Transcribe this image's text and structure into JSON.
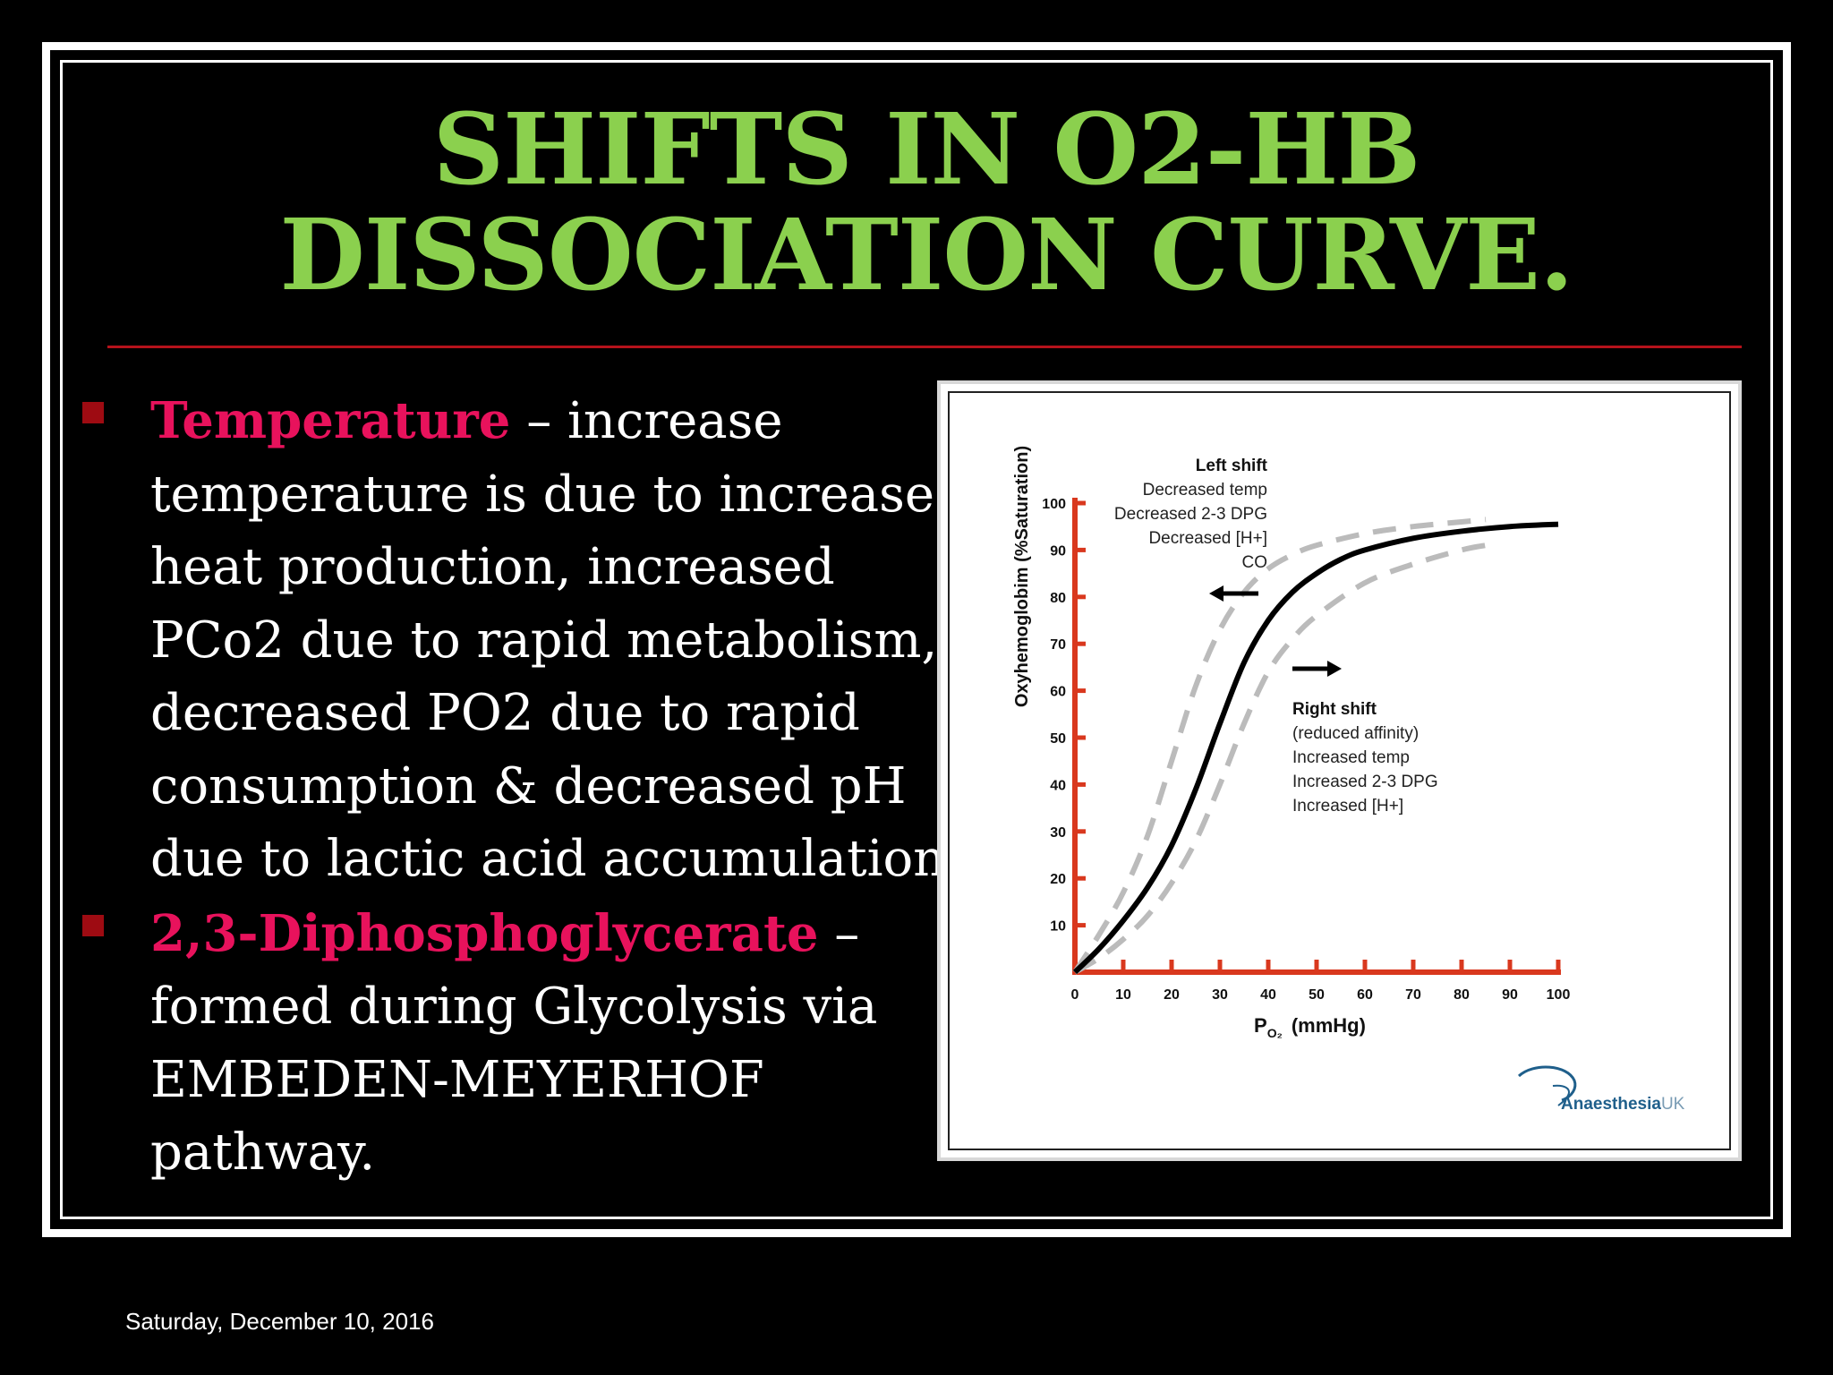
{
  "slide": {
    "title_line1": "SHIFTS IN O2-HB",
    "title_line2": "DISSOCIATION CURVE.",
    "date": "Saturday, December 10, 2016"
  },
  "bullets": [
    {
      "keyword": "Temperature",
      "lines": [
        " – increase",
        "temperature is due to increase",
        "heat production, increased",
        "PCo2 due to rapid metabolism,",
        "decreased PO2 due to rapid",
        "consumption & decreased pH",
        "due to lactic acid accumulation"
      ]
    },
    {
      "keyword": "2,3-Diphosphoglycerate",
      "lines": [
        " –",
        "formed during Glycolysis via",
        "EMBEDEN-MEYERHOF",
        "pathway."
      ]
    }
  ],
  "figure": {
    "y_axis_label": "Oxyhemoglobim  (%Saturation)",
    "x_axis_label_main": "P",
    "x_axis_label_sub": "O₂",
    "x_axis_label_unit": "(mmHg)",
    "x_ticks": [
      "0",
      "10",
      "20",
      "30",
      "40",
      "50",
      "60",
      "70",
      "80",
      "90",
      "100"
    ],
    "y_ticks": [
      "10",
      "20",
      "30",
      "40",
      "50",
      "60",
      "70",
      "80",
      "90",
      "100"
    ],
    "left_shift": {
      "title": "Left shift",
      "items": [
        "Decreased temp",
        "Decreased 2-3 DPG",
        "Decreased [H+]",
        "CO"
      ]
    },
    "right_shift": {
      "title": "Right shift",
      "items": [
        "(reduced affinity)",
        "Increased temp",
        "Increased 2-3 DPG",
        "Increased [H+]"
      ]
    },
    "logo_text_main": "Anaesthesia",
    "logo_text_suffix": "UK",
    "colors": {
      "axis": "#d9381e",
      "curve": "#000000",
      "shifted_curve": "#bbbbbb",
      "logo": "#1f5f8b"
    }
  },
  "chart_data": {
    "type": "line",
    "xlabel": "PO₂ (mmHg)",
    "ylabel": "Oxyhemoglobim  (%Saturation)",
    "xlim": [
      0,
      100
    ],
    "ylim": [
      0,
      100
    ],
    "series": [
      {
        "x": [
          0,
          5,
          10,
          15,
          20,
          25,
          30,
          35,
          40,
          45,
          50,
          55,
          60,
          70,
          80,
          90,
          100
        ],
        "values": [
          0,
          5,
          11,
          18,
          27,
          39,
          53,
          66,
          75,
          81,
          85,
          88,
          90,
          92.5,
          94,
          95,
          95.5
        ],
        "style": "solid"
      },
      {
        "x": [
          0,
          5,
          10,
          15,
          20,
          25,
          30,
          35,
          40,
          45,
          50,
          60,
          70,
          80,
          85
        ],
        "values": [
          0,
          8,
          17,
          29,
          45,
          61,
          73,
          81,
          86,
          89,
          91,
          93.5,
          95,
          96,
          96.5
        ],
        "style": "dashed"
      },
      {
        "x": [
          0,
          5,
          10,
          15,
          20,
          25,
          30,
          35,
          40,
          45,
          50,
          60,
          70,
          80,
          85
        ],
        "values": [
          0,
          3,
          7,
          12,
          19,
          28,
          40,
          53,
          64,
          71,
          76,
          83,
          87,
          90,
          91
        ],
        "style": "dashed"
      }
    ]
  }
}
